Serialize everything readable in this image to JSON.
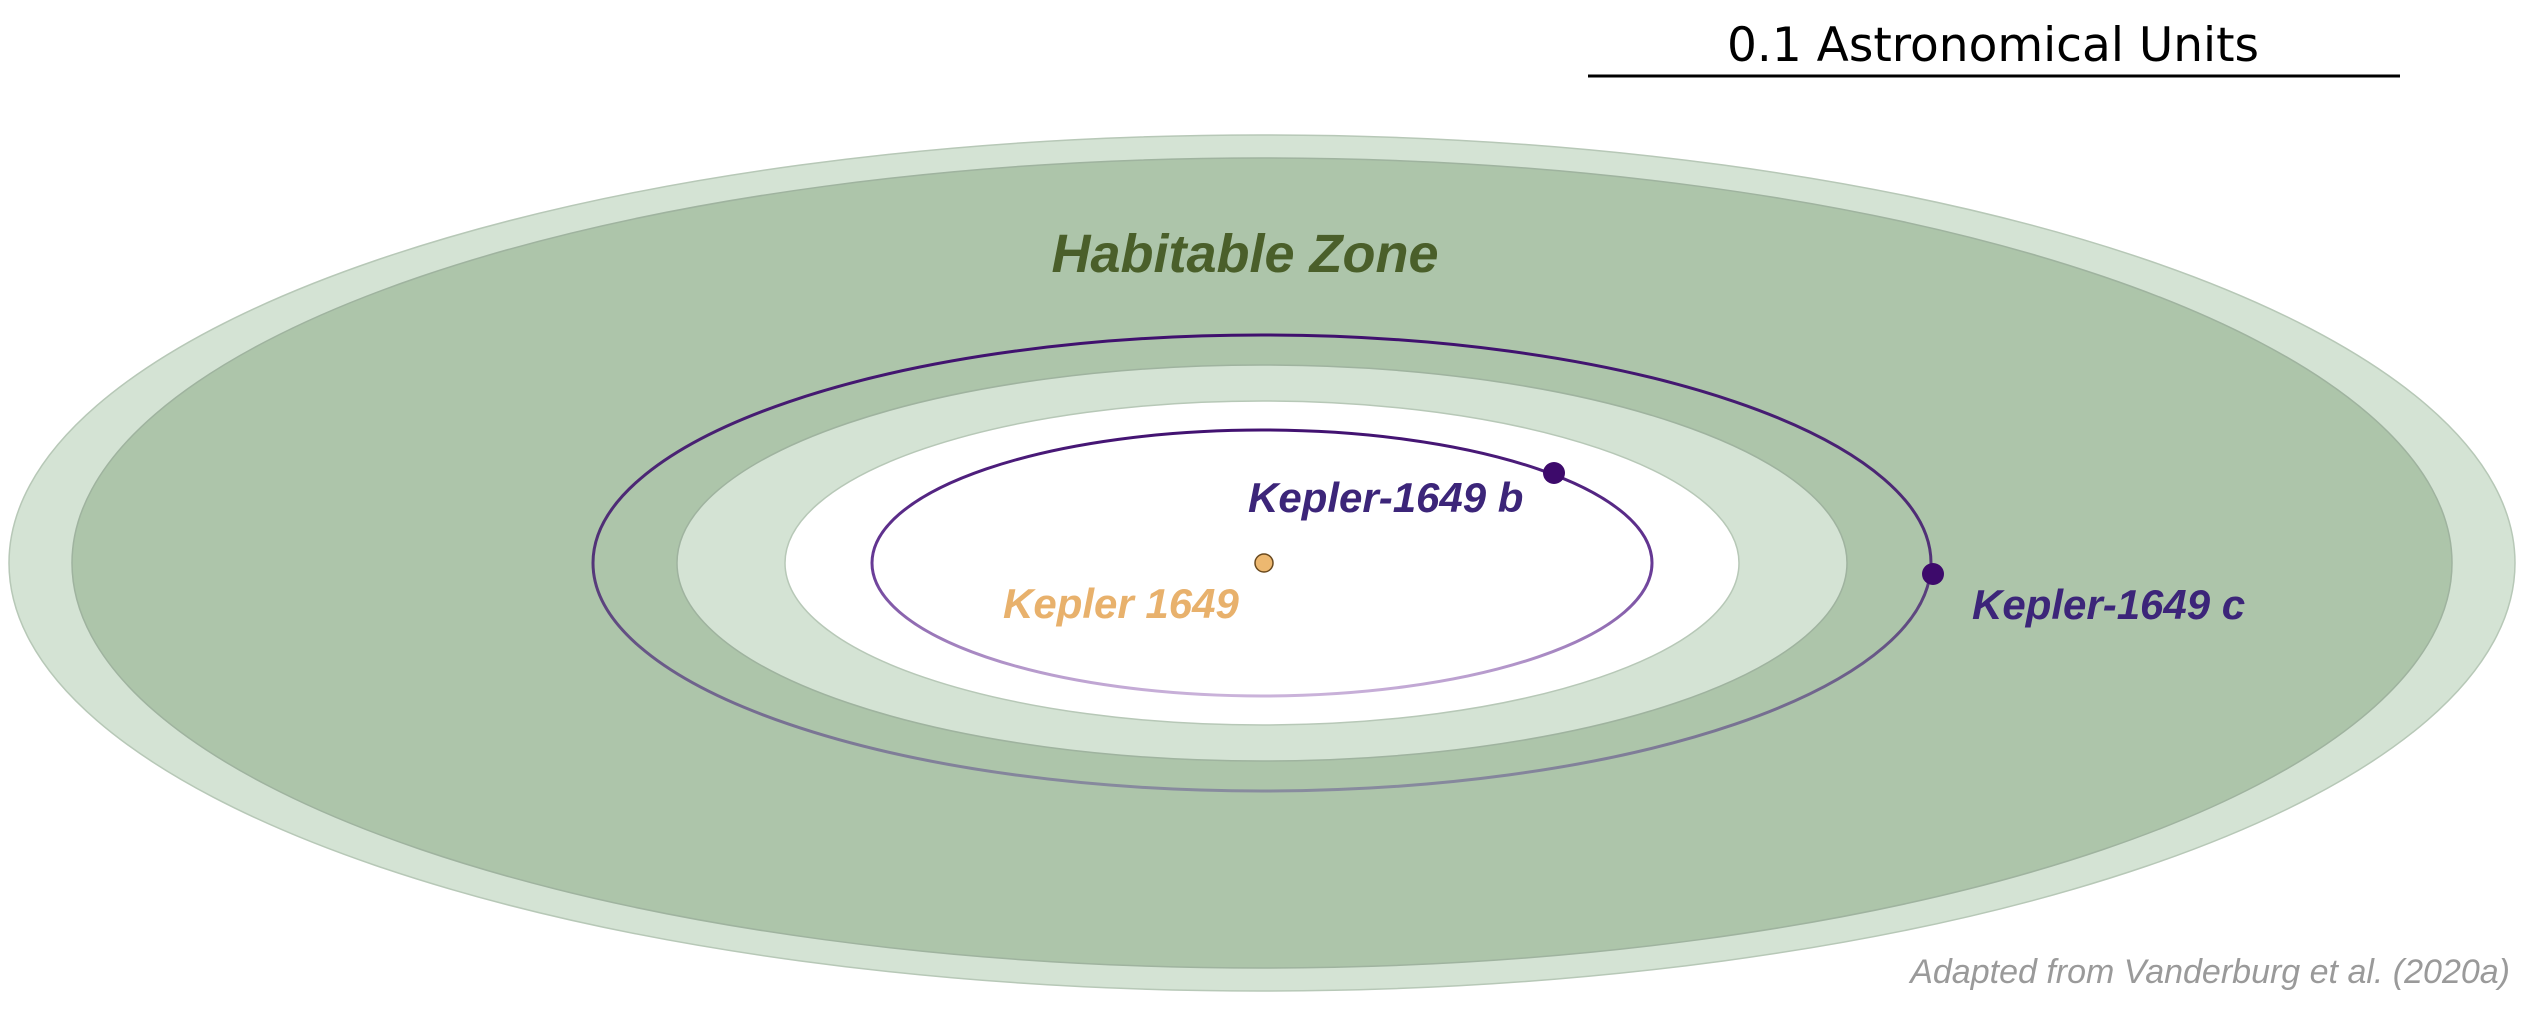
{
  "scale_bar": {
    "label": "0.1 Astronomical Units"
  },
  "habitable_zone": {
    "label": "Habitable Zone"
  },
  "star": {
    "label": "Kepler 1649"
  },
  "planets": [
    {
      "label": "Kepler-1649 b"
    },
    {
      "label": "Kepler-1649 c"
    }
  ],
  "credit": "Adapted from Vanderburg et al. (2020a)",
  "colors": {
    "hz_outer_band": "#d4e3d4",
    "hz_main": "#adc5aa",
    "hz_inner_band": "#d4e3d4",
    "hz_edge": "#9fb39f",
    "zone_label": "#4a5f2a",
    "orbit": "#3f0f6e",
    "planet": "#3d0a6b",
    "planet_label": "#3c2579",
    "star_fill": "#edb870",
    "star_label": "#e8b16c",
    "credit": "#9a9a9a"
  }
}
